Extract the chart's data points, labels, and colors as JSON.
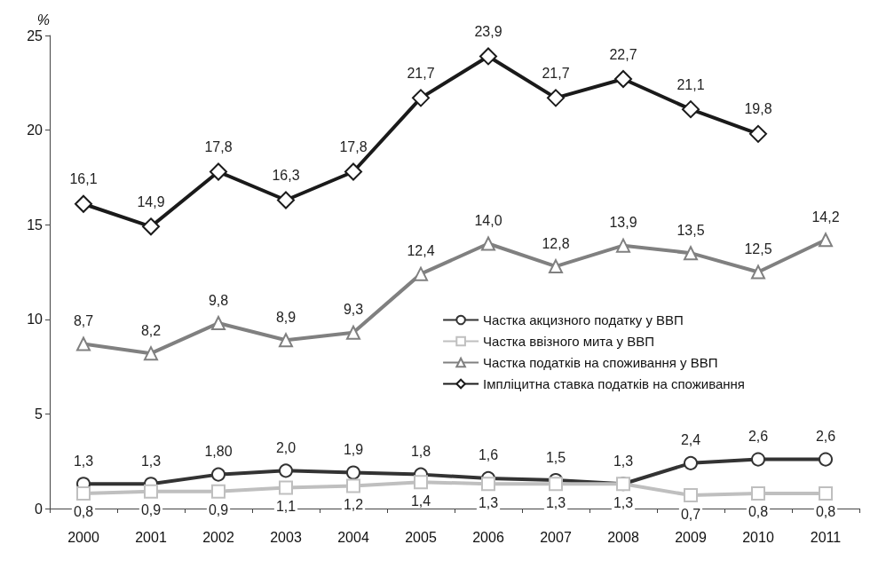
{
  "chart_data": {
    "type": "line",
    "ylabel": "%",
    "categories": [
      "2000",
      "2001",
      "2002",
      "2003",
      "2004",
      "2005",
      "2006",
      "2007",
      "2008",
      "2009",
      "2010",
      "2011"
    ],
    "series": [
      {
        "name": "Частка акцизного податку у ВВП",
        "color": "#333333",
        "marker": "circle",
        "values": [
          1.3,
          1.3,
          1.8,
          2.0,
          1.9,
          1.8,
          1.6,
          1.5,
          1.3,
          2.4,
          2.6,
          2.6
        ],
        "value_labels": [
          "1,3",
          "1,3",
          "1,80",
          "2,0",
          "1,9",
          "1,8",
          "1,6",
          "1,5",
          "1,3",
          "2,4",
          "2,6",
          "2,6"
        ]
      },
      {
        "name": "Частка ввізного мита у ВВП",
        "color": "#bfbfbf",
        "marker": "square",
        "values": [
          0.8,
          0.9,
          0.9,
          1.1,
          1.2,
          1.4,
          1.3,
          1.3,
          1.3,
          0.7,
          0.8,
          0.8
        ],
        "value_labels": [
          "0,8",
          "0,9",
          "0,9",
          "1,1",
          "1,2",
          "1,4",
          "1,3",
          "1,3",
          "1,3",
          "0,7",
          "0,8",
          "0,8"
        ]
      },
      {
        "name": "Частка податків на споживання у ВВП",
        "color": "#808080",
        "marker": "triangle",
        "values": [
          8.7,
          8.2,
          9.8,
          8.9,
          9.3,
          12.4,
          14.0,
          12.8,
          13.9,
          13.5,
          12.5,
          14.2
        ],
        "value_labels": [
          "8,7",
          "8,2",
          "9,8",
          "8,9",
          "9,3",
          "12,4",
          "14,0",
          "12,8",
          "13,9",
          "13,5",
          "12,5",
          "14,2"
        ]
      },
      {
        "name": "Імпліцитна ставка податків на споживання",
        "color": "#1a1a1a",
        "marker": "diamond",
        "values": [
          16.1,
          14.9,
          17.8,
          16.3,
          17.8,
          21.7,
          23.9,
          21.7,
          22.7,
          21.1,
          19.8,
          null
        ],
        "value_labels": [
          "16,1",
          "14,9",
          "17,8",
          "16,3",
          "17,8",
          "21,7",
          "23,9",
          "21,7",
          "22,7",
          "21,1",
          "19,8",
          null
        ]
      }
    ],
    "ylim": [
      0,
      25
    ],
    "yticks": [
      0,
      5,
      10,
      15,
      20,
      25
    ],
    "legend": "right",
    "grid": false
  }
}
